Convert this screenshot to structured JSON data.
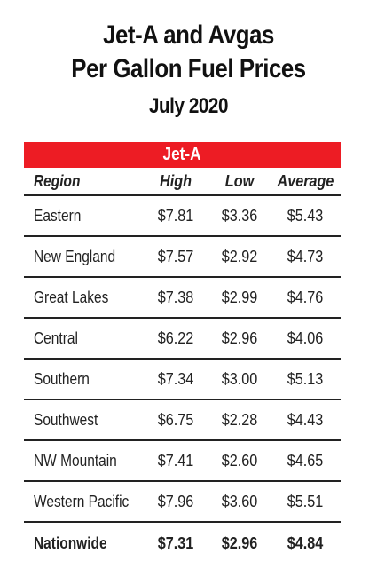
{
  "title_line1": "Jet-A and Avgas",
  "title_line2": "Per Gallon Fuel Prices",
  "subtitle": "July 2020",
  "band_label": "Jet-A",
  "accent_color": "#ed1c24",
  "columns": {
    "region": "Region",
    "high": "High",
    "low": "Low",
    "average": "Average"
  },
  "rows": [
    {
      "region": "Eastern",
      "high": "$7.81",
      "low": "$3.36",
      "average": "$5.43"
    },
    {
      "region": "New England",
      "high": "$7.57",
      "low": "$2.92",
      "average": "$4.73"
    },
    {
      "region": "Great Lakes",
      "high": "$7.38",
      "low": "$2.99",
      "average": "$4.76"
    },
    {
      "region": "Central",
      "high": "$6.22",
      "low": "$2.96",
      "average": "$4.06"
    },
    {
      "region": "Southern",
      "high": "$7.34",
      "low": "$3.00",
      "average": "$5.13"
    },
    {
      "region": "Southwest",
      "high": "$6.75",
      "low": "$2.28",
      "average": "$4.43"
    },
    {
      "region": "NW Mountain",
      "high": "$7.41",
      "low": "$2.60",
      "average": "$4.65"
    },
    {
      "region": "Western Pacific",
      "high": "$7.96",
      "low": "$3.60",
      "average": "$5.51"
    }
  ],
  "total": {
    "region": "Nationwide",
    "high": "$7.31",
    "low": "$2.96",
    "average": "$4.84"
  }
}
